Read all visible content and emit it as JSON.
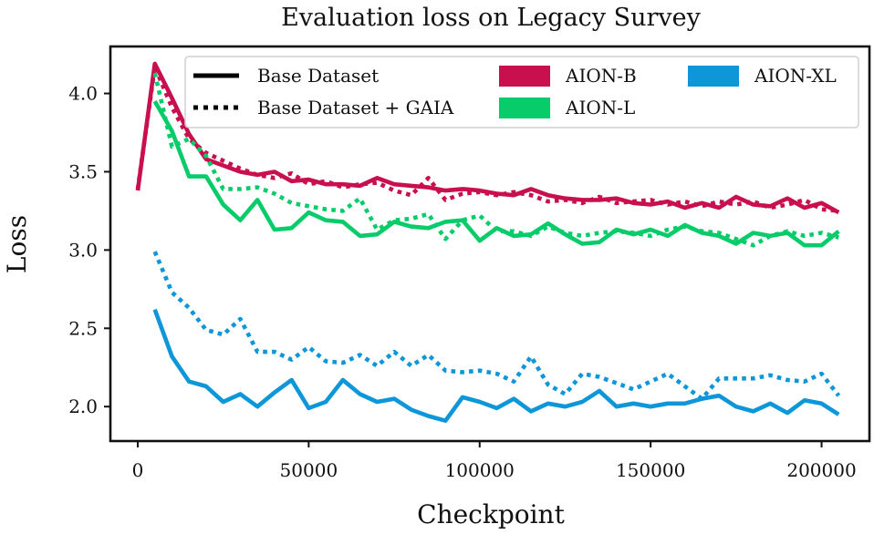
{
  "chart_data": {
    "type": "line",
    "title": "Evaluation loss on Legacy Survey",
    "xlabel": "Checkpoint",
    "ylabel": "Loss",
    "xlim": [
      -8000,
      214000
    ],
    "ylim": [
      1.78,
      4.3
    ],
    "xticks": [
      0,
      50000,
      100000,
      150000,
      200000
    ],
    "yticks": [
      2.0,
      2.5,
      3.0,
      3.5,
      4.0
    ],
    "ytick_labels": [
      "2.0",
      "2.5",
      "3.0",
      "3.5",
      "4.0"
    ],
    "grid": false,
    "legend_position": "top",
    "legend": {
      "styles": [
        {
          "label": "Base Dataset",
          "dash": "solid"
        },
        {
          "label": "Base Dataset + GAIA",
          "dash": "dotted"
        }
      ],
      "models": [
        {
          "label": "AION-B",
          "color": "#c8104e"
        },
        {
          "label": "AION-L",
          "color": "#08cc6a"
        },
        {
          "label": "AION-XL",
          "color": "#0d96d8"
        }
      ]
    },
    "series": [
      {
        "model": "AION-B",
        "dataset": "Base Dataset",
        "color": "#c8104e",
        "dash": "solid",
        "x": [
          0,
          5000,
          10000,
          15000,
          20000,
          25000,
          30000,
          35000,
          40000,
          45000,
          50000,
          55000,
          60000,
          65000,
          70000,
          75000,
          80000,
          85000,
          90000,
          95000,
          100000,
          105000,
          110000,
          115000,
          120000,
          125000,
          130000,
          135000,
          140000,
          145000,
          150000,
          155000,
          160000,
          165000,
          170000,
          175000,
          180000,
          185000,
          190000,
          195000,
          200000,
          205000
        ],
        "y": [
          3.38,
          4.19,
          3.97,
          3.74,
          3.58,
          3.54,
          3.5,
          3.48,
          3.5,
          3.44,
          3.45,
          3.42,
          3.42,
          3.41,
          3.46,
          3.42,
          3.41,
          3.4,
          3.38,
          3.39,
          3.38,
          3.36,
          3.35,
          3.39,
          3.35,
          3.33,
          3.32,
          3.32,
          3.33,
          3.3,
          3.29,
          3.31,
          3.27,
          3.3,
          3.27,
          3.34,
          3.29,
          3.28,
          3.33,
          3.27,
          3.3,
          3.24
        ]
      },
      {
        "model": "AION-B",
        "dataset": "Base Dataset + GAIA",
        "color": "#c8104e",
        "dash": "dotted",
        "x": [
          0,
          5000,
          10000,
          15000,
          20000,
          25000,
          30000,
          35000,
          40000,
          45000,
          50000,
          55000,
          60000,
          65000,
          70000,
          75000,
          80000,
          85000,
          90000,
          95000,
          100000,
          105000,
          110000,
          115000,
          120000,
          125000,
          130000,
          135000,
          140000,
          145000,
          150000,
          155000,
          160000,
          165000,
          170000,
          175000,
          180000,
          185000,
          190000,
          195000,
          200000,
          205000
        ],
        "y": [
          3.39,
          4.17,
          3.91,
          3.71,
          3.62,
          3.57,
          3.52,
          3.48,
          3.46,
          3.49,
          3.42,
          3.44,
          3.4,
          3.42,
          3.43,
          3.38,
          3.35,
          3.46,
          3.32,
          3.36,
          3.37,
          3.35,
          3.37,
          3.35,
          3.31,
          3.32,
          3.3,
          3.34,
          3.3,
          3.31,
          3.32,
          3.29,
          3.31,
          3.28,
          3.31,
          3.29,
          3.31,
          3.27,
          3.29,
          3.32,
          3.26,
          3.25
        ]
      },
      {
        "model": "AION-L",
        "dataset": "Base Dataset",
        "color": "#08cc6a",
        "dash": "solid",
        "x": [
          5000,
          10000,
          15000,
          20000,
          25000,
          30000,
          35000,
          40000,
          45000,
          50000,
          55000,
          60000,
          65000,
          70000,
          75000,
          80000,
          85000,
          90000,
          95000,
          100000,
          105000,
          110000,
          115000,
          120000,
          125000,
          130000,
          135000,
          140000,
          145000,
          150000,
          155000,
          160000,
          165000,
          170000,
          175000,
          180000,
          185000,
          190000,
          195000,
          200000,
          205000
        ],
        "y": [
          3.95,
          3.76,
          3.47,
          3.47,
          3.29,
          3.19,
          3.32,
          3.13,
          3.14,
          3.24,
          3.19,
          3.18,
          3.09,
          3.1,
          3.18,
          3.15,
          3.14,
          3.18,
          3.19,
          3.06,
          3.14,
          3.09,
          3.1,
          3.17,
          3.1,
          3.04,
          3.05,
          3.13,
          3.1,
          3.13,
          3.09,
          3.16,
          3.11,
          3.09,
          3.04,
          3.11,
          3.09,
          3.11,
          3.03,
          3.03,
          3.12
        ]
      },
      {
        "model": "AION-L",
        "dataset": "Base Dataset + GAIA",
        "color": "#08cc6a",
        "dash": "dotted",
        "x": [
          5000,
          10000,
          15000,
          20000,
          25000,
          30000,
          35000,
          40000,
          45000,
          50000,
          55000,
          60000,
          65000,
          70000,
          75000,
          80000,
          85000,
          90000,
          95000,
          100000,
          105000,
          110000,
          115000,
          120000,
          125000,
          130000,
          135000,
          140000,
          145000,
          150000,
          155000,
          160000,
          165000,
          170000,
          175000,
          180000,
          185000,
          190000,
          195000,
          200000,
          205000
        ],
        "y": [
          4.13,
          3.66,
          3.71,
          3.6,
          3.39,
          3.39,
          3.4,
          3.36,
          3.3,
          3.28,
          3.26,
          3.25,
          3.33,
          3.13,
          3.19,
          3.2,
          3.23,
          3.07,
          3.19,
          3.22,
          3.12,
          3.12,
          3.09,
          3.15,
          3.11,
          3.09,
          3.11,
          3.12,
          3.11,
          3.09,
          3.13,
          3.15,
          3.12,
          3.11,
          3.07,
          3.03,
          3.09,
          3.12,
          3.09,
          3.11,
          3.08
        ]
      },
      {
        "model": "AION-XL",
        "dataset": "Base Dataset",
        "color": "#0d96d8",
        "dash": "solid",
        "x": [
          5000,
          10000,
          15000,
          20000,
          25000,
          30000,
          35000,
          40000,
          45000,
          50000,
          55000,
          60000,
          65000,
          70000,
          75000,
          80000,
          85000,
          90000,
          95000,
          100000,
          105000,
          110000,
          115000,
          120000,
          125000,
          130000,
          135000,
          140000,
          145000,
          150000,
          155000,
          160000,
          165000,
          170000,
          175000,
          180000,
          185000,
          190000,
          195000,
          200000,
          205000
        ],
        "y": [
          2.62,
          2.32,
          2.16,
          2.13,
          2.03,
          2.08,
          2.0,
          2.09,
          2.17,
          1.99,
          2.03,
          2.17,
          2.08,
          2.03,
          2.05,
          1.98,
          1.94,
          1.91,
          2.06,
          2.03,
          1.99,
          2.05,
          1.97,
          2.02,
          2.0,
          2.03,
          2.1,
          2.0,
          2.02,
          2.0,
          2.02,
          2.02,
          2.05,
          2.07,
          2.0,
          1.97,
          2.02,
          1.96,
          2.04,
          2.02,
          1.95
        ]
      },
      {
        "model": "AION-XL",
        "dataset": "Base Dataset + GAIA",
        "color": "#0d96d8",
        "dash": "dotted",
        "x": [
          5000,
          10000,
          15000,
          20000,
          25000,
          30000,
          35000,
          40000,
          45000,
          50000,
          55000,
          60000,
          65000,
          70000,
          75000,
          80000,
          85000,
          90000,
          95000,
          100000,
          105000,
          110000,
          115000,
          120000,
          125000,
          130000,
          135000,
          140000,
          145000,
          150000,
          155000,
          160000,
          165000,
          170000,
          175000,
          180000,
          185000,
          190000,
          195000,
          200000,
          205000
        ],
        "y": [
          2.99,
          2.73,
          2.63,
          2.49,
          2.46,
          2.56,
          2.35,
          2.35,
          2.3,
          2.38,
          2.29,
          2.28,
          2.33,
          2.26,
          2.35,
          2.26,
          2.33,
          2.23,
          2.22,
          2.23,
          2.21,
          2.16,
          2.32,
          2.14,
          2.08,
          2.21,
          2.19,
          2.15,
          2.11,
          2.16,
          2.21,
          2.13,
          2.05,
          2.18,
          2.18,
          2.18,
          2.2,
          2.17,
          2.16,
          2.21,
          2.07
        ]
      }
    ]
  }
}
